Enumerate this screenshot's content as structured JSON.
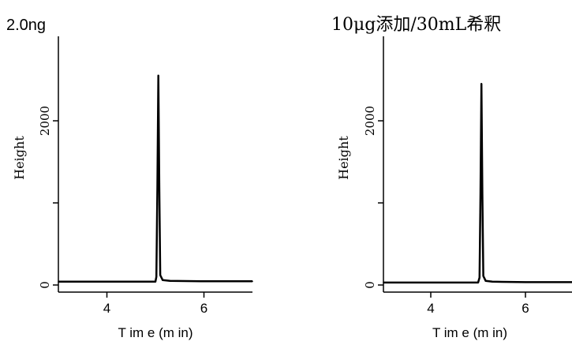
{
  "chart_data": [
    {
      "type": "line",
      "title": "2.0ng",
      "xlabel": "T im e (m in)",
      "ylabel": "Height",
      "xlim": [
        3,
        7
      ],
      "ylim": [
        0,
        2700
      ],
      "x_ticks": [
        4,
        6
      ],
      "x_tick_labels": [
        "4",
        "6"
      ],
      "y_ticks": [
        0,
        1000,
        2000
      ],
      "y_tick_labels": [
        "0",
        "",
        "2000"
      ],
      "grid": false,
      "series": [
        {
          "x": [
            3.0,
            4.0,
            5.0,
            5.02,
            5.04,
            5.06,
            5.08,
            5.1,
            5.15,
            5.3,
            6.0,
            7.0
          ],
          "values": [
            40,
            40,
            40,
            100,
            1200,
            2550,
            1200,
            120,
            60,
            50,
            45,
            45
          ]
        }
      ]
    },
    {
      "type": "line",
      "title": "10μg添加/30mL希釈",
      "xlabel": "T im e (m in)",
      "ylabel": "Height",
      "xlim": [
        3,
        7
      ],
      "ylim": [
        0,
        2700
      ],
      "x_ticks": [
        4,
        6
      ],
      "x_tick_labels": [
        "4",
        "6"
      ],
      "y_ticks": [
        0,
        1000,
        2000
      ],
      "y_tick_labels": [
        "0",
        "",
        "2000"
      ],
      "grid": false,
      "series": [
        {
          "x": [
            3.0,
            4.0,
            5.0,
            5.03,
            5.05,
            5.07,
            5.09,
            5.11,
            5.16,
            5.3,
            6.0,
            7.0
          ],
          "values": [
            30,
            30,
            30,
            90,
            1100,
            2450,
            1100,
            110,
            50,
            40,
            35,
            35
          ]
        }
      ]
    }
  ]
}
